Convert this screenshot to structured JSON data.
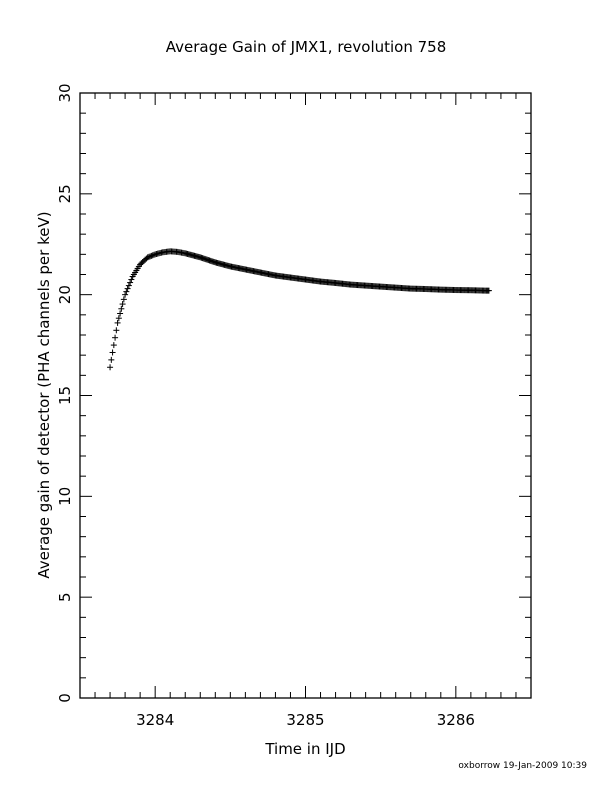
{
  "chart_data": {
    "type": "scatter",
    "title": "Average Gain of JMX1, revolution 758",
    "xlabel": "Time in IJD",
    "ylabel": "Average gain of detector (PHA channels per keV)",
    "xlim": [
      3283.5,
      3286.5
    ],
    "ylim": [
      0,
      30
    ],
    "xticks": [
      3284,
      3285,
      3286
    ],
    "yticks": [
      0,
      5,
      10,
      15,
      20,
      25,
      30
    ],
    "xtick_labels": [
      "3284",
      "3285",
      "3286"
    ],
    "ytick_labels": [
      "0",
      "5",
      "10",
      "15",
      "20",
      "25",
      "30"
    ],
    "marker": "+",
    "grid": false,
    "series": [
      {
        "x": [
          3283.7,
          3283.75,
          3283.8,
          3283.85,
          3283.9,
          3283.95,
          3284.0,
          3284.05,
          3284.1,
          3284.15,
          3284.2,
          3284.3,
          3284.4,
          3284.5,
          3284.6,
          3284.7,
          3284.8,
          3284.9,
          3285.0,
          3285.1,
          3285.2,
          3285.3,
          3285.4,
          3285.5,
          3285.6,
          3285.7,
          3285.8,
          3285.9,
          3286.0,
          3286.1,
          3286.2,
          3286.22
        ],
        "y": [
          16.4,
          18.6,
          20.0,
          20.9,
          21.5,
          21.85,
          22.0,
          22.1,
          22.15,
          22.12,
          22.05,
          21.85,
          21.6,
          21.4,
          21.25,
          21.1,
          20.95,
          20.85,
          20.75,
          20.65,
          20.58,
          20.5,
          20.45,
          20.4,
          20.35,
          20.3,
          20.28,
          20.25,
          20.23,
          20.22,
          20.2,
          20.2
        ]
      }
    ]
  },
  "footer": "oxborrow 19-Jan-2009 10:39"
}
